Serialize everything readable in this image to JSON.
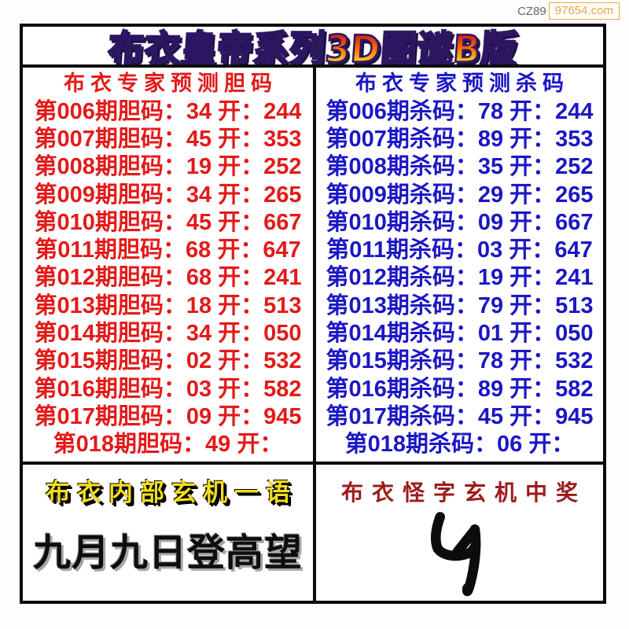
{
  "watermark": {
    "prefix": "CZ89",
    "site": "97654.com"
  },
  "title": {
    "text": "布衣皇帝系列3D图谜B版"
  },
  "panels": {
    "dan": {
      "header": "布衣专家预测胆码",
      "rows": [
        "第006期胆码：34 开：244",
        "第007期胆码：45 开：353",
        "第008期胆码：19 开：252",
        "第009期胆码：34 开：265",
        "第010期胆码：45 开：667",
        "第011期胆码：68 开：647",
        "第012期胆码：68 开：241",
        "第013期胆码：18 开：513",
        "第014期胆码：34 开：050",
        "第015期胆码：02 开：532",
        "第016期胆码：03 开：582",
        "第017期胆码：09 开：945",
        "第018期胆码：49 开："
      ]
    },
    "sha": {
      "header": "布衣专家预测杀码",
      "rows": [
        "第006期杀码：78 开：244",
        "第007期杀码：89 开：353",
        "第008期杀码：35 开：252",
        "第009期杀码：29 开：265",
        "第010期杀码：09 开：667",
        "第011期杀码：03 开：647",
        "第012期杀码：19 开：241",
        "第013期杀码：79 开：513",
        "第014期杀码：01 开：050",
        "第015期杀码：78 开：532",
        "第016期杀码：89 开：582",
        "第017期杀码：45 开：945",
        "第018期杀码：06 开："
      ]
    }
  },
  "bottom": {
    "left_banner": "布衣内部玄机一语",
    "left_phrase": "九月九日登高望",
    "right_banner": "布衣怪字玄机中奖",
    "glyph": "handwritten-mystery-glyph"
  },
  "colors": {
    "dan_red": "#e31a1a",
    "sha_blue": "#1c17c4",
    "banner_yellow": "#f2de1e",
    "banner_dark_red": "#9c1b1b",
    "watermark_orange": "#f0a23a",
    "frame_black": "#0b0b0b"
  }
}
